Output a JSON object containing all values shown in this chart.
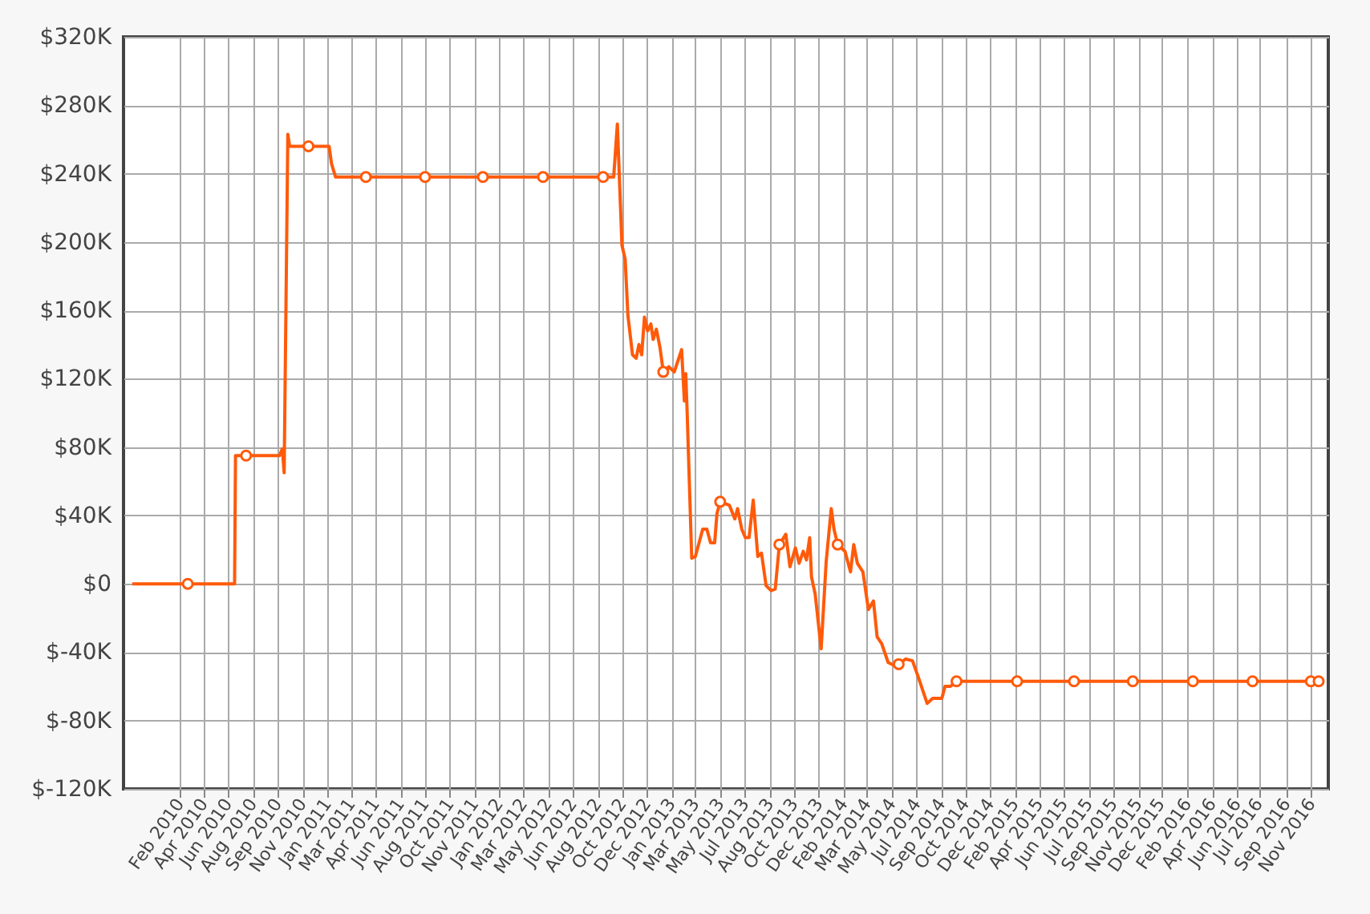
{
  "chart_data": {
    "type": "line",
    "grid": true,
    "legend": false,
    "xlim": [
      "2009-10-23",
      "2016-12-30"
    ],
    "xticks": [
      {
        "value": "2010-02-23",
        "label": "Feb 2010"
      },
      {
        "value": "2010-04-16",
        "label": "Apr 2010"
      },
      {
        "value": "2010-06-08",
        "label": "Jun 2010"
      },
      {
        "value": "2010-08-01",
        "label": "Aug 2010"
      },
      {
        "value": "2010-09-24",
        "label": "Sep 2010"
      },
      {
        "value": "2010-11-17",
        "label": "Nov 2010"
      },
      {
        "value": "2011-01-10",
        "label": "Jan 2011"
      },
      {
        "value": "2011-03-03",
        "label": "Mar 2011"
      },
      {
        "value": "2011-04-25",
        "label": "Apr 2011"
      },
      {
        "value": "2011-06-18",
        "label": "Jun 2011"
      },
      {
        "value": "2011-08-11",
        "label": "Aug 2011"
      },
      {
        "value": "2011-10-04",
        "label": "Oct 2011"
      },
      {
        "value": "2011-11-27",
        "label": "Nov 2011"
      },
      {
        "value": "2012-01-19",
        "label": "Jan 2012"
      },
      {
        "value": "2012-03-12",
        "label": "Mar 2012"
      },
      {
        "value": "2012-05-05",
        "label": "May 2012"
      },
      {
        "value": "2012-06-28",
        "label": "Jun 2012"
      },
      {
        "value": "2012-08-21",
        "label": "Aug 2012"
      },
      {
        "value": "2012-10-14",
        "label": "Oct 2012"
      },
      {
        "value": "2012-12-06",
        "label": "Dec 2012"
      },
      {
        "value": "2013-01-29",
        "label": "Jan 2013"
      },
      {
        "value": "2013-03-22",
        "label": "Mar 2013"
      },
      {
        "value": "2013-05-15",
        "label": "May 2013"
      },
      {
        "value": "2013-07-08",
        "label": "Jul 2013"
      },
      {
        "value": "2013-08-31",
        "label": "Aug 2013"
      },
      {
        "value": "2013-10-23",
        "label": "Oct 2013"
      },
      {
        "value": "2013-12-16",
        "label": "Dec 2013"
      },
      {
        "value": "2014-02-08",
        "label": "Feb 2014"
      },
      {
        "value": "2014-03-31",
        "label": "Mar 2014"
      },
      {
        "value": "2014-05-24",
        "label": "May 2014"
      },
      {
        "value": "2014-07-17",
        "label": "Jul 2014"
      },
      {
        "value": "2014-09-09",
        "label": "Sep 2014"
      },
      {
        "value": "2014-10-31",
        "label": "Oct 2014"
      },
      {
        "value": "2014-12-24",
        "label": "Dec 2014"
      },
      {
        "value": "2015-02-16",
        "label": "Feb 2015"
      },
      {
        "value": "2015-04-10",
        "label": "Apr 2015"
      },
      {
        "value": "2015-06-03",
        "label": "Jun 2015"
      },
      {
        "value": "2015-07-27",
        "label": "Jul 2015"
      },
      {
        "value": "2015-09-19",
        "label": "Sep 2015"
      },
      {
        "value": "2015-11-12",
        "label": "Nov 2015"
      },
      {
        "value": "2015-12-31",
        "label": "Dec 2015"
      },
      {
        "value": "2016-02-27",
        "label": "Feb 2016"
      },
      {
        "value": "2016-04-21",
        "label": "Apr 2016"
      },
      {
        "value": "2016-06-14",
        "label": "Jun 2016"
      },
      {
        "value": "2016-07-31",
        "label": "Jul 2016"
      },
      {
        "value": "2016-09-30",
        "label": "Sep 2016"
      },
      {
        "value": "2016-11-23",
        "label": "Nov 2016"
      }
    ],
    "ylim": [
      -120,
      320
    ],
    "yticks": [
      {
        "value": -120,
        "label": "$-120K"
      },
      {
        "value": -80,
        "label": "$-80K"
      },
      {
        "value": -40,
        "label": "$-40K"
      },
      {
        "value": 0,
        "label": "$0"
      },
      {
        "value": 40,
        "label": "$40K"
      },
      {
        "value": 80,
        "label": "$80K"
      },
      {
        "value": 120,
        "label": "$120K"
      },
      {
        "value": 160,
        "label": "$160K"
      },
      {
        "value": 200,
        "label": "$200K"
      },
      {
        "value": 240,
        "label": "$240K"
      },
      {
        "value": 280,
        "label": "$280K"
      },
      {
        "value": 320,
        "label": "$320K"
      }
    ],
    "series": [
      {
        "type": "line",
        "color": "#ff5a0a",
        "x": [
          "2009-11-11",
          "2010-06-22",
          "2010-06-24",
          "2010-09-28",
          "2010-10-04",
          "2010-10-08",
          "2010-10-16",
          "2010-10-20",
          "2011-01-14",
          "2011-01-19",
          "2011-01-28",
          "2012-09-25",
          "2012-10-03",
          "2012-10-13",
          "2012-10-20",
          "2012-10-26",
          "2012-11-05",
          "2012-11-13",
          "2012-11-19",
          "2012-11-25",
          "2012-12-01",
          "2012-12-08",
          "2012-12-15",
          "2012-12-20",
          "2012-12-27",
          "2013-01-04",
          "2013-01-11",
          "2013-01-23",
          "2013-02-04",
          "2013-02-20",
          "2013-02-26",
          "2013-03-01",
          "2013-03-04",
          "2013-03-14",
          "2013-03-22",
          "2013-04-07",
          "2013-04-16",
          "2013-04-24",
          "2013-05-03",
          "2013-05-08",
          "2013-05-15",
          "2013-06-04",
          "2013-06-16",
          "2013-06-22",
          "2013-07-01",
          "2013-07-09",
          "2013-07-17",
          "2013-07-26",
          "2013-08-05",
          "2013-08-13",
          "2013-08-23",
          "2013-09-03",
          "2013-09-12",
          "2013-09-21",
          "2013-10-05",
          "2013-10-14",
          "2013-10-26",
          "2013-11-03",
          "2013-11-12",
          "2013-11-19",
          "2013-11-26",
          "2013-11-30",
          "2013-12-08",
          "2013-12-21",
          "2014-01-01",
          "2014-01-12",
          "2014-01-18",
          "2014-01-26",
          "2014-02-11",
          "2014-02-23",
          "2014-03-02",
          "2014-03-10",
          "2014-03-22",
          "2014-04-03",
          "2014-04-14",
          "2014-04-22",
          "2014-05-02",
          "2014-05-16",
          "2014-05-31",
          "2014-06-08",
          "2014-06-23",
          "2014-07-08",
          "2014-07-20",
          "2014-08-09",
          "2014-08-21",
          "2014-09-10",
          "2014-09-17",
          "2014-09-29",
          "2014-10-12",
          "2016-12-09"
        ],
        "values": [
          0,
          0,
          75,
          75,
          79,
          65,
          263,
          256,
          256,
          246,
          238,
          238,
          269,
          198,
          190,
          157,
          134,
          132,
          140,
          134,
          156,
          148,
          152,
          143,
          149,
          138,
          124,
          127,
          124,
          137,
          107,
          123,
          101,
          15,
          16,
          32,
          32,
          24,
          24,
          41,
          48,
          46,
          38,
          44,
          32,
          27,
          27,
          49,
          16,
          18,
          -1,
          -4,
          -3,
          23,
          29,
          10,
          21,
          12,
          19,
          14,
          27,
          4,
          -6,
          -38,
          13,
          44,
          32,
          23,
          19,
          7,
          23,
          12,
          7,
          -15,
          -10,
          -31,
          -35,
          -46,
          -48,
          -47,
          -44,
          -45,
          -54,
          -70,
          -67,
          -67,
          -60,
          -60,
          -57,
          -57
        ]
      },
      {
        "type": "scatter",
        "color": "#ff5a0a",
        "x": [
          "2010-03-12",
          "2010-07-17",
          "2010-11-30",
          "2011-04-04",
          "2011-08-11",
          "2011-12-15",
          "2012-04-24",
          "2012-09-02",
          "2013-01-11",
          "2013-05-15",
          "2013-09-21",
          "2014-01-26",
          "2014-06-08",
          "2014-10-12",
          "2015-02-21",
          "2015-06-25",
          "2015-10-31",
          "2016-03-10",
          "2016-07-18",
          "2016-11-22",
          "2016-12-09"
        ],
        "values": [
          0,
          75,
          256,
          238,
          238,
          238,
          238,
          238,
          124,
          48,
          23,
          23,
          -47,
          -57,
          -57,
          -57,
          -57,
          -57,
          -57,
          -57,
          -57
        ]
      }
    ]
  }
}
